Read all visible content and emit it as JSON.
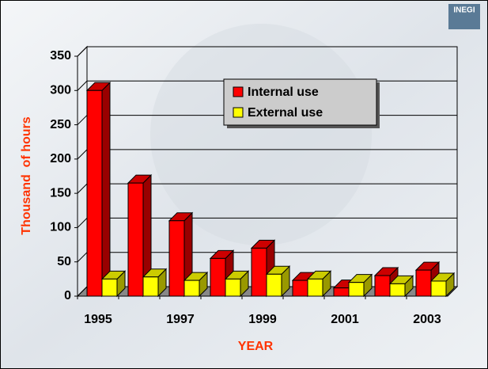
{
  "logo": "INEGI",
  "chart_data": {
    "type": "bar3d",
    "categories": [
      "1995",
      null,
      "1997",
      null,
      "1999",
      null,
      "2001",
      null,
      "2003"
    ],
    "series": [
      {
        "name": "Internal use",
        "color": "#ff0000",
        "values": [
          300,
          165,
          110,
          55,
          70,
          23,
          12,
          30,
          38
        ]
      },
      {
        "name": "External use",
        "color": "#ffff00",
        "values": [
          25,
          28,
          23,
          25,
          32,
          25,
          20,
          18,
          22
        ]
      }
    ],
    "ylim": [
      0,
      350
    ],
    "yticks": [
      0,
      50,
      100,
      150,
      200,
      250,
      300,
      350
    ],
    "xlabel": "YEAR",
    "ylabel": "Thousand  of hours",
    "grid": true,
    "legend": "top-right"
  }
}
